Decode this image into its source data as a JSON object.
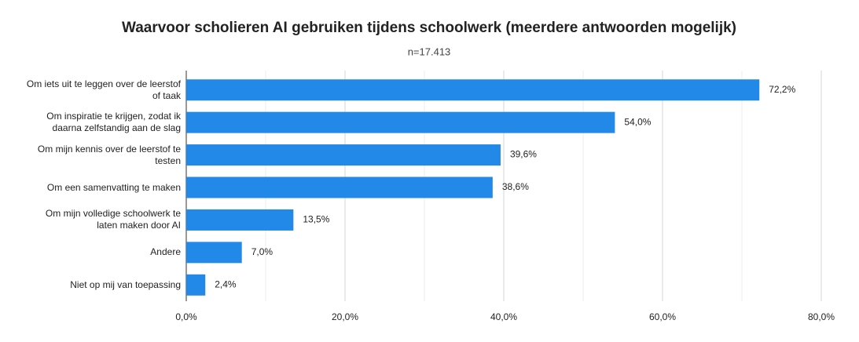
{
  "chart_data": {
    "type": "bar",
    "orientation": "horizontal",
    "title": "Waarvoor scholieren AI gebruiken tijdens schoolwerk (meerdere antwoorden mogelijk)",
    "subtitle": "n=17.413",
    "categories": [
      "Om iets uit te leggen over de leerstof of taak",
      "Om inspiratie te krijgen, zodat ik daarna zelfstandig aan de slag",
      "Om mijn kennis over de leerstof te testen",
      "Om een samenvatting te maken",
      "Om mijn volledige schoolwerk te laten maken door AI",
      "Andere",
      "Niet op mij van toepassing"
    ],
    "values": [
      72.2,
      54.0,
      39.6,
      38.6,
      13.5,
      7.0,
      2.4
    ],
    "value_labels": [
      "72,2%",
      "54,0%",
      "39,6%",
      "38,6%",
      "13,5%",
      "7,0%",
      "2,4%"
    ],
    "color": "#2389e8",
    "xlim": [
      0,
      80
    ],
    "xticks": [
      {
        "value": 0,
        "label": "0,0%"
      },
      {
        "value": 20,
        "label": "20,0%"
      },
      {
        "value": 40,
        "label": "40,0%"
      },
      {
        "value": 60,
        "label": "60,0%"
      },
      {
        "value": 80,
        "label": "80,0%"
      }
    ],
    "grid": true
  }
}
